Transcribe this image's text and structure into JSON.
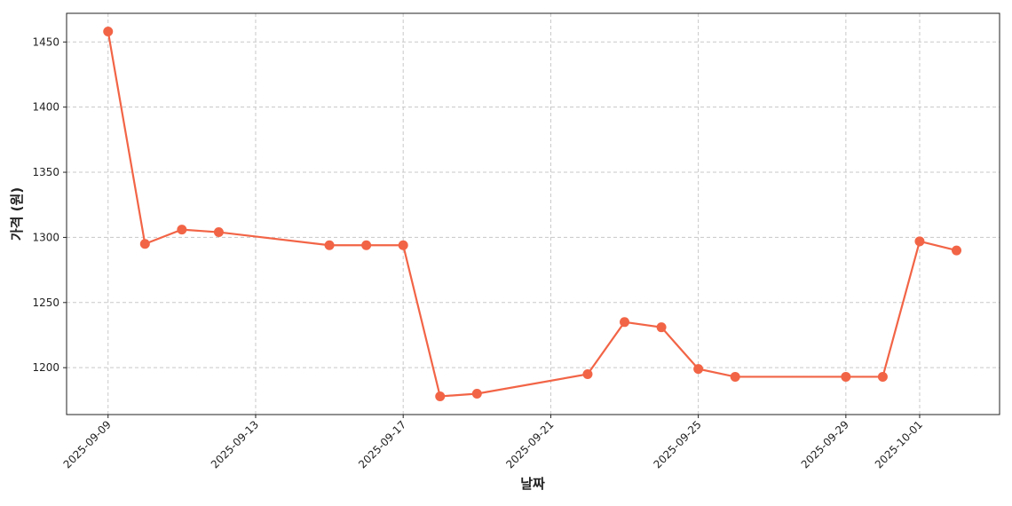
{
  "chart_data": {
    "type": "line",
    "xlabel": "날짜",
    "ylabel": "가격 (원)",
    "x": [
      "2025-09-09",
      "2025-09-10",
      "2025-09-11",
      "2025-09-12",
      "2025-09-15",
      "2025-09-16",
      "2025-09-17",
      "2025-09-18",
      "2025-09-19",
      "2025-09-22",
      "2025-09-23",
      "2025-09-24",
      "2025-09-25",
      "2025-09-26",
      "2025-09-29",
      "2025-09-30",
      "2025-10-01",
      "2025-10-02"
    ],
    "values": [
      1458,
      1295,
      1306,
      1304,
      1294,
      1294,
      1294,
      1178,
      1180,
      1195,
      1235,
      1231,
      1199,
      1193,
      1193,
      1193,
      1297,
      1290
    ],
    "color": "#f26446",
    "xlim": [
      "2025-09-07T21:00:00",
      "2025-10-03T04:00:00"
    ],
    "xticks": [
      "2025-09-09",
      "2025-09-13",
      "2025-09-17",
      "2025-09-21",
      "2025-09-25",
      "2025-09-29",
      "2025-10-01"
    ],
    "ylim": [
      1164,
      1472
    ],
    "yticks": [
      1200,
      1250,
      1300,
      1350,
      1400,
      1450
    ],
    "grid": true
  }
}
